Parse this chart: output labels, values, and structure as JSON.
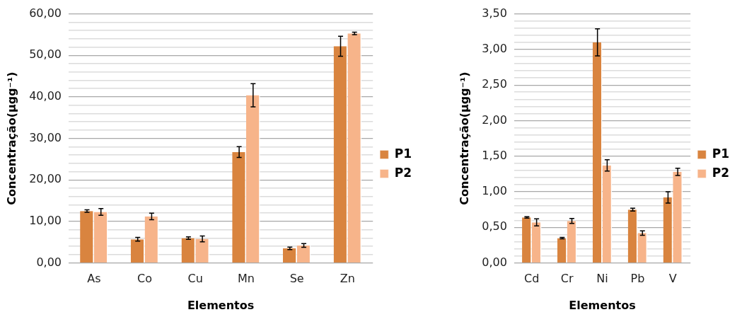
{
  "chart_data": [
    {
      "type": "bar",
      "xlabel": "Elementos",
      "ylabel": "Concentração(µgg⁻¹)",
      "categories": [
        "As",
        "Co",
        "Cu",
        "Mn",
        "Se",
        "Zn"
      ],
      "series": [
        {
          "name": "P1",
          "color": "#d9843f",
          "values": [
            12.5,
            5.7,
            6.0,
            26.7,
            3.5,
            52.2
          ],
          "errors": [
            0.3,
            0.45,
            0.3,
            1.3,
            0.3,
            2.4
          ]
        },
        {
          "name": "P2",
          "color": "#f7b48a",
          "values": [
            12.3,
            11.2,
            5.8,
            40.4,
            4.2,
            55.3
          ],
          "errors": [
            0.8,
            0.8,
            0.7,
            2.8,
            0.45,
            0.3
          ]
        }
      ],
      "ylim": [
        0,
        60
      ],
      "yticks": [
        {
          "value": 0,
          "label": "0,00"
        },
        {
          "value": 2,
          "label": null
        },
        {
          "value": 4,
          "label": null
        },
        {
          "value": 6,
          "label": null
        },
        {
          "value": 8,
          "label": null
        },
        {
          "value": 10,
          "label": "10,00"
        },
        {
          "value": 12,
          "label": null
        },
        {
          "value": 14,
          "label": null
        },
        {
          "value": 16,
          "label": null
        },
        {
          "value": 18,
          "label": null
        },
        {
          "value": 20,
          "label": "20,00"
        },
        {
          "value": 22,
          "label": null
        },
        {
          "value": 24,
          "label": null
        },
        {
          "value": 26,
          "label": null
        },
        {
          "value": 28,
          "label": null
        },
        {
          "value": 30,
          "label": "30,00"
        },
        {
          "value": 32,
          "label": null
        },
        {
          "value": 34,
          "label": null
        },
        {
          "value": 36,
          "label": null
        },
        {
          "value": 38,
          "label": null
        },
        {
          "value": 40,
          "label": "40,00"
        },
        {
          "value": 42,
          "label": null
        },
        {
          "value": 44,
          "label": null
        },
        {
          "value": 46,
          "label": null
        },
        {
          "value": 48,
          "label": null
        },
        {
          "value": 50,
          "label": "50,00"
        },
        {
          "value": 52,
          "label": null
        },
        {
          "value": 54,
          "label": null
        },
        {
          "value": 56,
          "label": null
        },
        {
          "value": 58,
          "label": null
        },
        {
          "value": 60,
          "label": "60,00"
        }
      ],
      "grid": "y",
      "legend": "right"
    },
    {
      "type": "bar",
      "xlabel": "Elementos",
      "ylabel": "Concentração(µgg⁻¹)",
      "categories": [
        "Cd",
        "Cr",
        "Ni",
        "Pb",
        "V"
      ],
      "series": [
        {
          "name": "P1",
          "color": "#d9843f",
          "values": [
            0.64,
            0.35,
            3.1,
            0.75,
            0.92
          ],
          "errors": [
            0.01,
            0.01,
            0.19,
            0.02,
            0.08
          ]
        },
        {
          "name": "P2",
          "color": "#f7b48a",
          "values": [
            0.57,
            0.59,
            1.37,
            0.42,
            1.28
          ],
          "errors": [
            0.05,
            0.035,
            0.08,
            0.03,
            0.05
          ]
        }
      ],
      "ylim": [
        0,
        3.5
      ],
      "yticks": [
        {
          "value": 0,
          "label": "0,00"
        },
        {
          "value": 0.1,
          "label": null
        },
        {
          "value": 0.2,
          "label": null
        },
        {
          "value": 0.3,
          "label": null
        },
        {
          "value": 0.4,
          "label": null
        },
        {
          "value": 0.5,
          "label": "0,50"
        },
        {
          "value": 0.6,
          "label": null
        },
        {
          "value": 0.7,
          "label": null
        },
        {
          "value": 0.8,
          "label": null
        },
        {
          "value": 0.9,
          "label": null
        },
        {
          "value": 1.0,
          "label": "1,00"
        },
        {
          "value": 1.1,
          "label": null
        },
        {
          "value": 1.2,
          "label": null
        },
        {
          "value": 1.3,
          "label": null
        },
        {
          "value": 1.4,
          "label": null
        },
        {
          "value": 1.5,
          "label": "1,50"
        },
        {
          "value": 1.6,
          "label": null
        },
        {
          "value": 1.7,
          "label": null
        },
        {
          "value": 1.8,
          "label": null
        },
        {
          "value": 1.9,
          "label": null
        },
        {
          "value": 2.0,
          "label": "2,00"
        },
        {
          "value": 2.1,
          "label": null
        },
        {
          "value": 2.2,
          "label": null
        },
        {
          "value": 2.3,
          "label": null
        },
        {
          "value": 2.4,
          "label": null
        },
        {
          "value": 2.5,
          "label": "2,50"
        },
        {
          "value": 2.6,
          "label": null
        },
        {
          "value": 2.7,
          "label": null
        },
        {
          "value": 2.8,
          "label": null
        },
        {
          "value": 2.9,
          "label": null
        },
        {
          "value": 3.0,
          "label": "3,00"
        },
        {
          "value": 3.1,
          "label": null
        },
        {
          "value": 3.2,
          "label": null
        },
        {
          "value": 3.3,
          "label": null
        },
        {
          "value": 3.4,
          "label": null
        },
        {
          "value": 3.5,
          "label": "3,50"
        }
      ],
      "grid": "y",
      "legend": "right"
    }
  ]
}
